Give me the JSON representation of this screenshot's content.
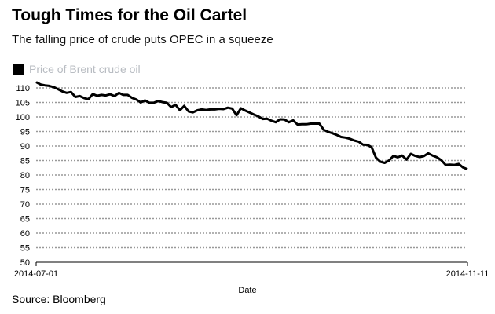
{
  "title": "Tough Times for the Oil Cartel",
  "subtitle": "The falling price of crude puts OPEC in a squeeze",
  "source": "Source: Bloomberg",
  "colors": {
    "line": "#000000",
    "grid": "#999999",
    "legend_text": "#b8bcc2"
  },
  "chart_data": {
    "type": "line",
    "title": "Tough Times for the Oil Cartel",
    "xlabel": "Date",
    "ylabel": "",
    "ylim": [
      50,
      112
    ],
    "yticks": [
      50,
      55,
      60,
      65,
      70,
      75,
      80,
      85,
      90,
      95,
      100,
      105,
      110
    ],
    "xtick_labels": [
      "2014-07-01",
      "2014-11-11"
    ],
    "legend": "top-left",
    "grid": true,
    "series": [
      {
        "name": "Price of Brent crude oil",
        "values": [
          112.0,
          111.2,
          110.9,
          110.7,
          110.3,
          109.6,
          108.8,
          108.3,
          108.6,
          106.9,
          107.2,
          106.5,
          106.1,
          107.9,
          107.3,
          107.6,
          107.4,
          107.8,
          107.2,
          108.3,
          107.6,
          107.6,
          106.6,
          106.0,
          105.0,
          105.7,
          104.9,
          104.9,
          105.5,
          105.1,
          104.9,
          103.4,
          104.2,
          102.3,
          103.8,
          101.9,
          101.6,
          102.3,
          102.6,
          102.4,
          102.6,
          102.6,
          102.8,
          102.7,
          103.2,
          102.9,
          100.6,
          103.0,
          102.2,
          101.5,
          100.8,
          100.2,
          99.3,
          99.4,
          98.7,
          98.2,
          99.2,
          99.1,
          98.2,
          98.8,
          97.4,
          97.5,
          97.5,
          97.7,
          97.7,
          97.7,
          95.6,
          94.9,
          94.4,
          93.8,
          93.1,
          92.9,
          92.5,
          91.9,
          91.5,
          90.5,
          90.4,
          89.6,
          86.0,
          84.6,
          84.2,
          85.0,
          86.6,
          86.1,
          86.7,
          85.3,
          87.3,
          86.6,
          86.2,
          86.5,
          87.5,
          86.7,
          86.1,
          85.1,
          83.5,
          83.6,
          83.5,
          83.8,
          82.6,
          82.0
        ]
      }
    ]
  }
}
